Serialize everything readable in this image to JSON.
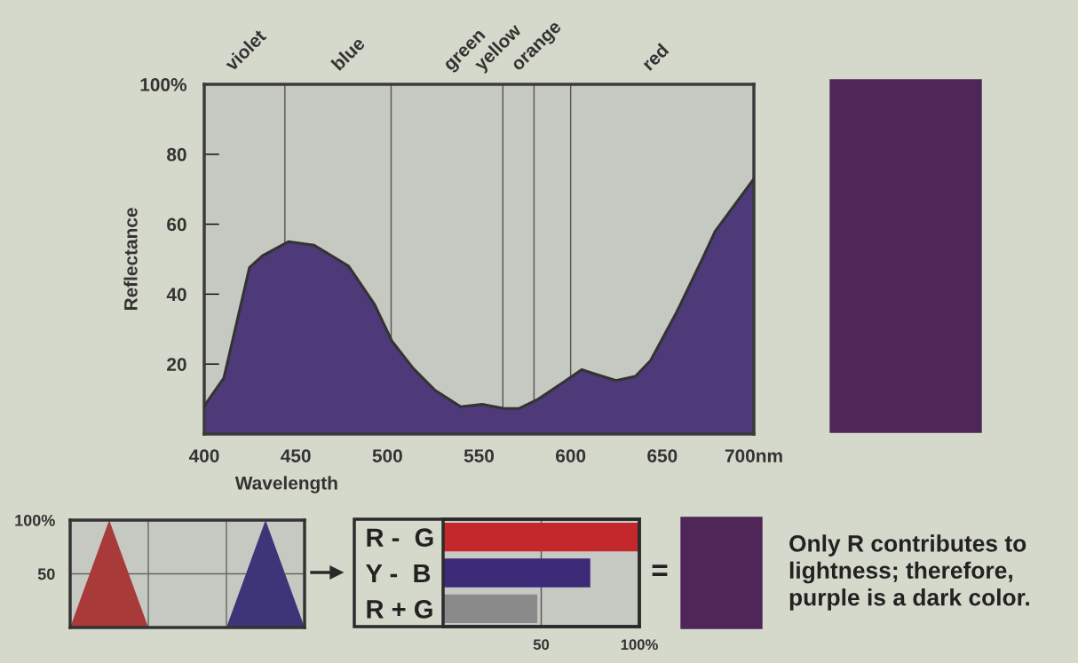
{
  "chart_data": [
    {
      "type": "area",
      "ylabel": "Reflectance",
      "xlabel": "Wavelength",
      "x": [
        400,
        410.7,
        424.7,
        431.8,
        445.9,
        460,
        478.8,
        493,
        502.4,
        514.2,
        526,
        540,
        551.7,
        563.6,
        571.9,
        582.4,
        596.5,
        606,
        615.4,
        624.8,
        635.3,
        643.6,
        657.7,
        671.8,
        678.9,
        700
      ],
      "series": [
        {
          "color": "#4e3a78",
          "values": [
            8,
            16,
            47.6,
            51,
            55,
            54,
            48,
            37,
            26.6,
            18.7,
            12.5,
            7.8,
            8.5,
            7.3,
            7.3,
            10,
            15,
            18.4,
            16.8,
            15.3,
            16.5,
            21,
            34.7,
            50,
            58,
            73
          ]
        }
      ],
      "xlim": [
        400,
        700
      ],
      "xticks": [
        400,
        450,
        500,
        550,
        600,
        650,
        {
          "value": 700,
          "label": "700nm"
        }
      ],
      "ylim": [
        0,
        100
      ],
      "yticks": [
        20,
        40,
        60,
        80,
        {
          "value": 100,
          "label": "100%"
        }
      ],
      "ref_lines": [
        {
          "axis": "x",
          "value": 444,
          "label": "violet",
          "color": "#555555"
        },
        {
          "axis": "x",
          "value": 502,
          "label": "blue",
          "color": "#555555"
        },
        {
          "axis": "x",
          "value": 563,
          "label": "green",
          "color": "#555555"
        },
        {
          "axis": "x",
          "value": 580,
          "label": "yellow",
          "color": "#555555"
        },
        {
          "axis": "x",
          "value": 600,
          "label": "orange",
          "color": "#555555"
        }
      ],
      "annotations": [
        "red"
      ]
    },
    {
      "type": "area",
      "categories": [
        null,
        null,
        null,
        null,
        null,
        null,
        null
      ],
      "series": [
        {
          "color": "#a83a3a",
          "values": [
            0,
            100,
            0,
            0,
            0,
            0,
            0
          ]
        },
        {
          "color": "#3e3478",
          "values": [
            null,
            null,
            null,
            null,
            0,
            100,
            0
          ]
        }
      ],
      "ylim": [
        0,
        100
      ],
      "yticks": [
        50,
        {
          "value": 100,
          "label": "100%"
        }
      ],
      "tick_labels": "y",
      "grid": true
    },
    {
      "type": "bar",
      "orientation": "horizontal",
      "categories": [
        "R -  G",
        "Y -  B",
        "R + G"
      ],
      "values": [
        100,
        75,
        48
      ],
      "colors": [
        "#c4282c",
        "#3c2a78",
        "#8a8a8a"
      ],
      "xlim": [
        0,
        100
      ],
      "xticks": [
        50,
        {
          "value": 100,
          "label": "100%"
        }
      ],
      "grid": "x"
    },
    {
      "type": "other",
      "annotations": [
        "=",
        "Only R contributes to\nlightness; therefore,\npurple is a dark color."
      ]
    }
  ]
}
